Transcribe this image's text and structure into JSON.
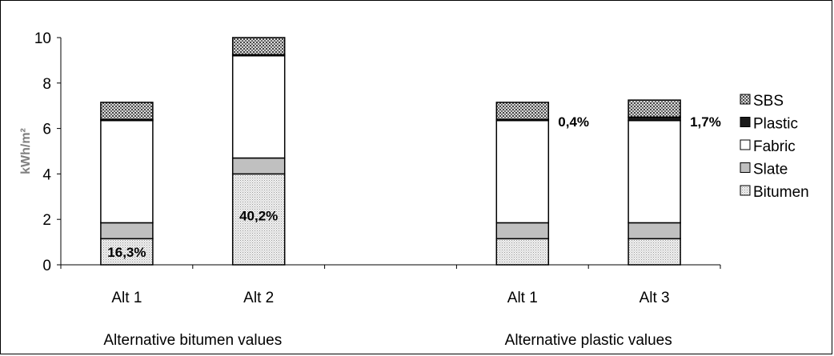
{
  "chart_data": {
    "type": "bar",
    "stacked": true,
    "ylabel": "kWh/m²",
    "ylim": [
      0,
      10
    ],
    "yticks": [
      "0",
      "2",
      "4",
      "6",
      "8",
      "10"
    ],
    "legend_position": "right",
    "grid": false,
    "series": [
      {
        "name": "Bitumen",
        "pattern": "bitumen",
        "values": [
          1.15,
          4.0,
          null,
          1.15,
          1.15
        ]
      },
      {
        "name": "Slate",
        "pattern": "slate",
        "values": [
          0.7,
          0.7,
          null,
          0.7,
          0.7
        ]
      },
      {
        "name": "Fabric",
        "pattern": "fabric",
        "values": [
          4.5,
          4.5,
          null,
          4.5,
          4.5
        ]
      },
      {
        "name": "Plastic",
        "pattern": "plastic",
        "values": [
          0.05,
          0.05,
          null,
          0.05,
          0.15
        ]
      },
      {
        "name": "SBS",
        "pattern": "sbs",
        "values": [
          0.75,
          0.75,
          null,
          0.75,
          0.75
        ]
      }
    ],
    "categories": [
      "Alt 1",
      "Alt 2",
      "",
      "Alt 1",
      "Alt 3"
    ],
    "groups": [
      {
        "label": "Alternative bitumen values"
      },
      {
        "label": "Alternative plastic values"
      }
    ],
    "annotations": [
      {
        "text": "16,3%",
        "category": 0,
        "y": 0.35,
        "align": "center"
      },
      {
        "text": "40,2%",
        "category": 1,
        "y": 1.95,
        "align": "center"
      },
      {
        "text": "0,4%",
        "category": 3,
        "y": 6.1,
        "align": "right"
      },
      {
        "text": "1,7%",
        "category": 4,
        "y": 6.1,
        "align": "right"
      }
    ],
    "legend_order": [
      "SBS",
      "Plastic",
      "Fabric",
      "Slate",
      "Bitumen"
    ]
  },
  "colors": {
    "bitumen_fill": "#f0f0f0",
    "bitumen_dot": "#9a9a9a",
    "slate": "#c0c0c0",
    "fabric": "#ffffff",
    "plastic": "#1a1a1a",
    "sbs_fill": "#d8d8d8",
    "sbs_dot": "#444444"
  }
}
